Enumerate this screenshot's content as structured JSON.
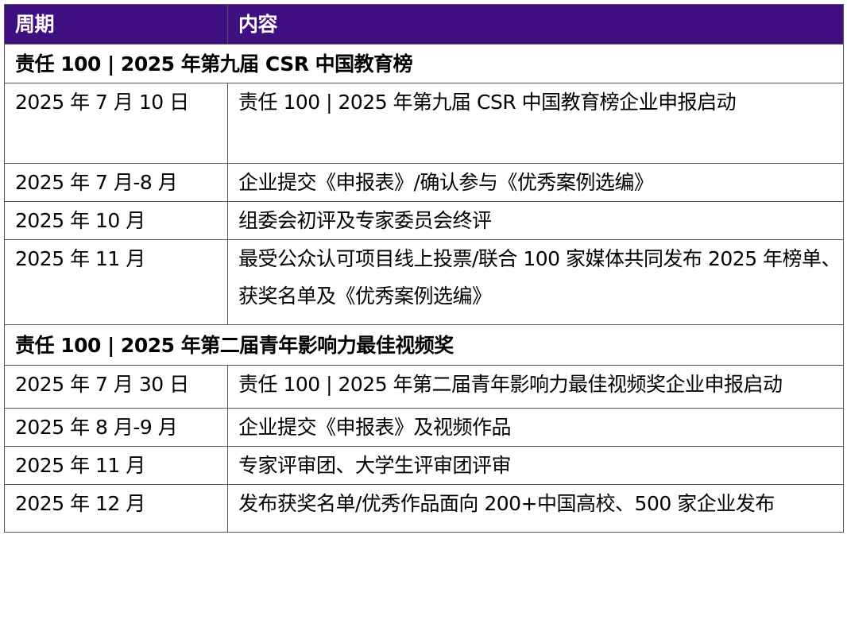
{
  "header": {
    "period": "周期",
    "content": "内容"
  },
  "sections": [
    {
      "title": "责任 100 | 2025 年第九届 CSR 中国教育榜",
      "rows": [
        {
          "period": "2025 年 7 月 10 日",
          "content": "责任 100 | 2025 年第九届 CSR 中国教育榜企业申报启动"
        },
        {
          "period": "2025 年 7 月-8 月",
          "content": "企业提交《申报表》/确认参与《优秀案例选编》"
        },
        {
          "period": "2025 年 10 月",
          "content": "组委会初评及专家委员会终评"
        },
        {
          "period": "2025 年 11 月",
          "content": "最受公众认可项目线上投票/联合 100 家媒体共同发布 2025 年榜单、获奖名单及《优秀案例选编》"
        }
      ]
    },
    {
      "title": "责任 100 | 2025 年第二届青年影响力最佳视频奖",
      "rows": [
        {
          "period": "2025 年 7 月 30 日",
          "content": "责任 100 | 2025 年第二届青年影响力最佳视频奖企业申报启动"
        },
        {
          "period": "2025 年 8 月-9 月",
          "content": "企业提交《申报表》及视频作品"
        },
        {
          "period": "2025 年 11 月",
          "content": "专家评审团、大学生评审团评审"
        },
        {
          "period": "2025 年 12 月",
          "content": "发布获奖名单/优秀作品面向 200+中国高校、500 家企业发布"
        }
      ]
    }
  ],
  "colors": {
    "header_bg": "#3f0f82"
  }
}
